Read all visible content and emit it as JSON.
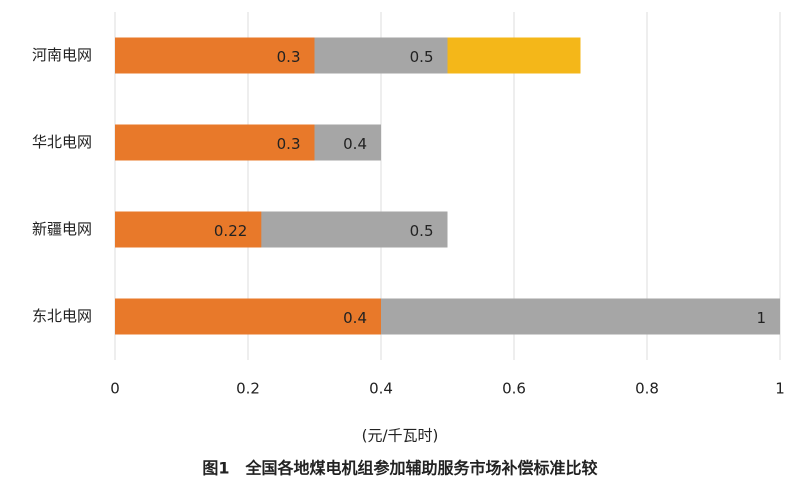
{
  "chart_data": {
    "type": "bar",
    "orientation": "horizontal",
    "overlay": true,
    "title": "图1　全国各地煤电机组参加辅助服务市场补偿标准比较",
    "x_label": "(元/千瓦时)",
    "categories": [
      "河南电网",
      "华北电网",
      "新疆电网",
      "东北电网"
    ],
    "series": [
      {
        "color": "#e8792a",
        "values": [
          0.3,
          0.3,
          0.22,
          0.4
        ],
        "show_labels": true
      },
      {
        "color": "#a6a6a6",
        "values": [
          0.5,
          0.4,
          0.5,
          1
        ],
        "show_labels": true
      },
      {
        "color": "#f4b719",
        "values": [
          0.7,
          null,
          null,
          null
        ],
        "show_labels": false
      }
    ],
    "xlim": [
      0,
      1
    ],
    "xticks": [
      0,
      0.2,
      0.4,
      0.6,
      0.8,
      1
    ],
    "grid": true
  }
}
